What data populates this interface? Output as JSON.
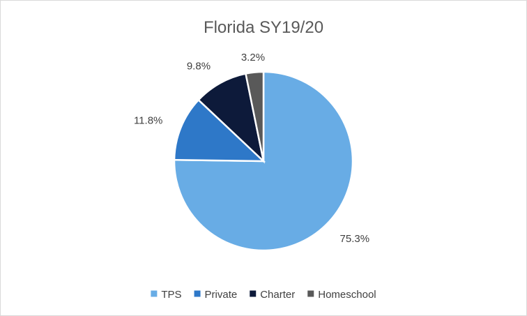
{
  "chart_data": {
    "type": "pie",
    "title": "Florida SY19/20",
    "categories": [
      "TPS",
      "Private",
      "Charter",
      "Homeschool"
    ],
    "values": [
      75.3,
      11.8,
      9.8,
      3.2
    ],
    "data_labels": [
      "75.3%",
      "11.8%",
      "9.8%",
      "3.2%"
    ],
    "colors": [
      "#68ace5",
      "#2e78c8",
      "#0d1a3a",
      "#595959"
    ],
    "legend_position": "bottom",
    "start_angle": "top",
    "direction": "clockwise"
  }
}
